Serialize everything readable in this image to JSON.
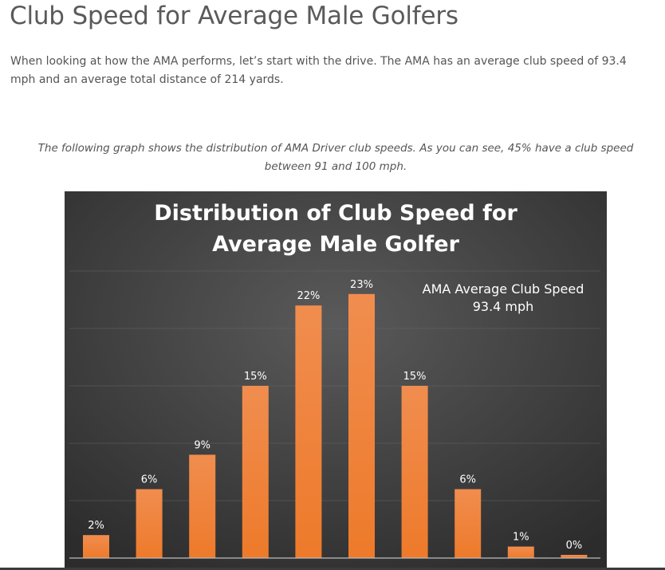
{
  "article": {
    "heading": "Club Speed for Average Male Golfers",
    "intro": "When looking at how the AMA performs, let’s start with the drive. The AMA has an average club speed of 93.4 mph and an average total distance of 214 yards.",
    "caption": "The following graph shows the distribution of AMA Driver club speeds. As you can see, 45% have a club speed between 91 and 100 mph."
  },
  "colors": {
    "chart_background": "#4a4a4a",
    "bar": "#ee7d31",
    "chart_text": "#ffffff"
  },
  "chart_data": {
    "type": "bar",
    "title_line1": "Distribution of Club Speed for",
    "title_line2": "Average Male Golfer",
    "annotation_line1": "AMA Average Club Speed",
    "annotation_line2": "93.4 mph",
    "values": [
      2,
      6,
      9,
      15,
      22,
      23,
      15,
      6,
      1,
      0
    ],
    "labels": [
      "2%",
      "6%",
      "9%",
      "15%",
      "22%",
      "23%",
      "15%",
      "6%",
      "1%",
      "0%"
    ],
    "grid": true,
    "ylim": [
      0,
      25
    ]
  }
}
